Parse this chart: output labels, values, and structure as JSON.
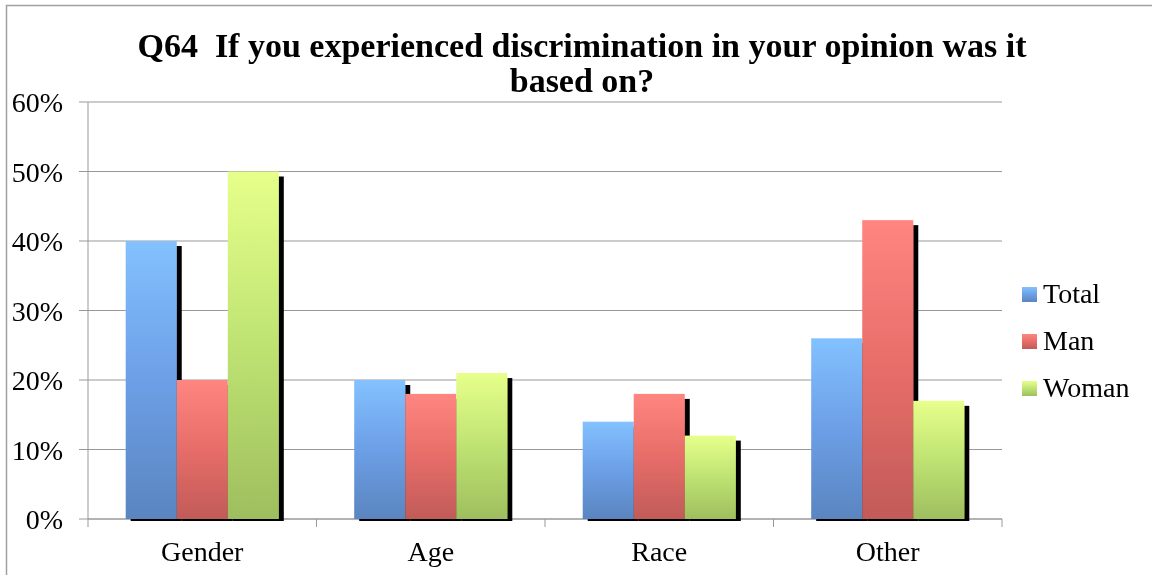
{
  "chart_data": {
    "type": "bar",
    "title": "Q64  If you experienced discrimination in your opinion was it based on?",
    "categories": [
      "Gender",
      "Age",
      "Race",
      "Other"
    ],
    "series": [
      {
        "name": "Total",
        "color": "#6c9fe6",
        "values": [
          40,
          20,
          14,
          26
        ]
      },
      {
        "name": "Man",
        "color": "#e76d69",
        "values": [
          20,
          18,
          18,
          43
        ]
      },
      {
        "name": "Woman",
        "color": "#bee372",
        "values": [
          50,
          21,
          12,
          17
        ]
      }
    ],
    "ylim": [
      0,
      60
    ],
    "yticks": [
      {
        "value": 0,
        "label": "0%"
      },
      {
        "value": 10,
        "label": "10%"
      },
      {
        "value": 20,
        "label": "20%"
      },
      {
        "value": 30,
        "label": "30%"
      },
      {
        "value": 40,
        "label": "40%"
      },
      {
        "value": 50,
        "label": "50%"
      },
      {
        "value": 60,
        "label": "60%"
      }
    ],
    "grid": "y",
    "legend": "right"
  }
}
